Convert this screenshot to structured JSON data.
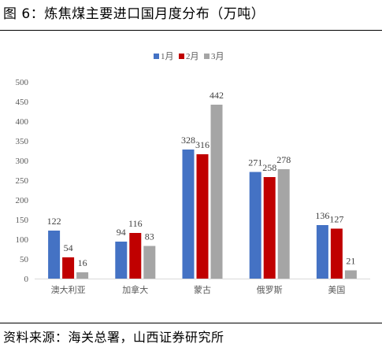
{
  "figure": {
    "title": "图 6：炼焦煤主要进口国月度分布（万吨）",
    "source": "资料来源：海关总署，山西证券研究所"
  },
  "chart_data": {
    "type": "bar",
    "categories": [
      "澳大利亚",
      "加拿大",
      "蒙古",
      "俄罗斯",
      "美国"
    ],
    "series": [
      {
        "name": "1月",
        "values": [
          122,
          94,
          328,
          271,
          136
        ],
        "color": "#4472C4"
      },
      {
        "name": "2月",
        "values": [
          54,
          116,
          316,
          258,
          127
        ],
        "color": "#C00000"
      },
      {
        "name": "3月",
        "values": [
          16,
          83,
          442,
          278,
          21
        ],
        "color": "#A5A5A5"
      }
    ],
    "y_ticks": [
      "0",
      "50",
      "100",
      "150",
      "200",
      "250",
      "300",
      "350",
      "400",
      "450",
      "500"
    ],
    "ylim": [
      0,
      500
    ],
    "grid": false,
    "legend_position": "top-center",
    "data_labels": true
  }
}
